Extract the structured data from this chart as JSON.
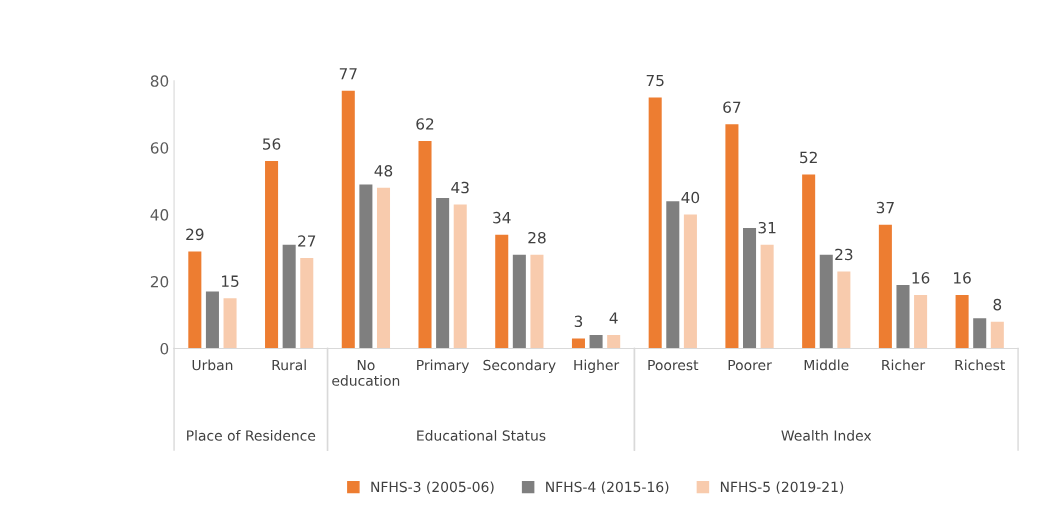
{
  "chart_data": {
    "type": "bar",
    "categories": [
      "Urban",
      "Rural",
      "No\neducation",
      "Primary",
      "Secondary",
      "Higher",
      "Poorest",
      "Poorer",
      "Middle",
      "Richer",
      "Richest"
    ],
    "series": [
      {
        "name": "NFHS-3 (2005-06)",
        "color": "#ed7d31",
        "values": [
          29,
          56,
          77,
          62,
          34,
          3,
          75,
          67,
          52,
          37,
          16
        ],
        "value_labels": [
          "29",
          "56",
          "77",
          "62",
          "34",
          "3",
          "75",
          "67",
          "52",
          "37",
          "16"
        ]
      },
      {
        "name": "NFHS-4 (2015-16)",
        "color": "#7f7f7f",
        "values": [
          17,
          31,
          49,
          45,
          28,
          4,
          44,
          36,
          28,
          19,
          9
        ]
      },
      {
        "name": "NFHS-5 (2019-21)",
        "color": "#f8cbad",
        "values": [
          15,
          27,
          48,
          43,
          28,
          4,
          40,
          31,
          23,
          16,
          8
        ],
        "value_labels": [
          "15",
          "27",
          "48",
          "43",
          "28",
          "4",
          "40",
          "31",
          "23",
          "16",
          "8"
        ]
      }
    ],
    "annotations": [
      "Place of Residence",
      "Educational Status",
      "Wealth Index"
    ],
    "ylim": [
      0,
      80
    ],
    "yticks": [
      0,
      20,
      40,
      60,
      80
    ],
    "grid": false,
    "legend": "bottom"
  }
}
